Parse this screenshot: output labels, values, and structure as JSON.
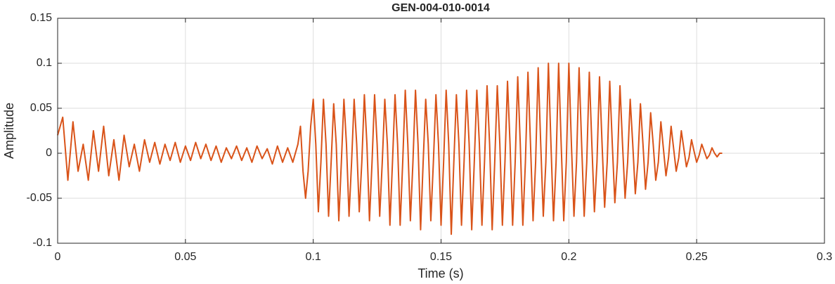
{
  "chart_data": {
    "type": "line",
    "title": "GEN-004-010-0014",
    "x_label": "Time (s)",
    "y_label": "Amplitude",
    "color": "#d95319",
    "grid": true,
    "xlim": [
      0,
      0.3
    ],
    "xticks": [
      0,
      0.05,
      0.1,
      0.15,
      0.2,
      0.25,
      0.3
    ],
    "ylim": [
      -0.1,
      0.15
    ],
    "yticks": [
      -0.1,
      -0.05,
      0,
      0.05,
      0.1,
      0.15
    ],
    "x": [
      0,
      0.002,
      0.004,
      0.006,
      0.008,
      0.01,
      0.012,
      0.014,
      0.016,
      0.018,
      0.02,
      0.022,
      0.024,
      0.026,
      0.028,
      0.03,
      0.032,
      0.034,
      0.036,
      0.038,
      0.04,
      0.042,
      0.044,
      0.046,
      0.048,
      0.05,
      0.052,
      0.054,
      0.056,
      0.058,
      0.06,
      0.062,
      0.064,
      0.066,
      0.068,
      0.07,
      0.072,
      0.074,
      0.076,
      0.078,
      0.08,
      0.082,
      0.084,
      0.086,
      0.088,
      0.09,
      0.092,
      0.094,
      0.095,
      0.096,
      0.097,
      0.098,
      0.099,
      0.1,
      0.101,
      0.102,
      0.103,
      0.104,
      0.105,
      0.106,
      0.107,
      0.108,
      0.109,
      0.11,
      0.111,
      0.112,
      0.113,
      0.114,
      0.115,
      0.116,
      0.117,
      0.118,
      0.119,
      0.12,
      0.121,
      0.122,
      0.123,
      0.124,
      0.125,
      0.126,
      0.127,
      0.128,
      0.129,
      0.13,
      0.131,
      0.132,
      0.133,
      0.134,
      0.135,
      0.136,
      0.137,
      0.138,
      0.139,
      0.14,
      0.141,
      0.142,
      0.143,
      0.144,
      0.145,
      0.146,
      0.147,
      0.148,
      0.149,
      0.15,
      0.151,
      0.152,
      0.153,
      0.154,
      0.155,
      0.156,
      0.157,
      0.158,
      0.159,
      0.16,
      0.161,
      0.162,
      0.163,
      0.164,
      0.165,
      0.166,
      0.167,
      0.168,
      0.169,
      0.17,
      0.171,
      0.172,
      0.173,
      0.174,
      0.175,
      0.176,
      0.177,
      0.178,
      0.179,
      0.18,
      0.181,
      0.182,
      0.183,
      0.184,
      0.185,
      0.186,
      0.187,
      0.188,
      0.189,
      0.19,
      0.191,
      0.192,
      0.193,
      0.194,
      0.195,
      0.196,
      0.197,
      0.198,
      0.199,
      0.2,
      0.201,
      0.202,
      0.203,
      0.204,
      0.205,
      0.206,
      0.207,
      0.208,
      0.209,
      0.21,
      0.211,
      0.212,
      0.213,
      0.214,
      0.215,
      0.216,
      0.217,
      0.218,
      0.219,
      0.22,
      0.221,
      0.222,
      0.223,
      0.224,
      0.225,
      0.226,
      0.227,
      0.228,
      0.229,
      0.23,
      0.231,
      0.232,
      0.233,
      0.234,
      0.235,
      0.236,
      0.237,
      0.238,
      0.239,
      0.24,
      0.241,
      0.242,
      0.243,
      0.244,
      0.245,
      0.246,
      0.247,
      0.248,
      0.249,
      0.25,
      0.251,
      0.252,
      0.253,
      0.254,
      0.255,
      0.256,
      0.257,
      0.258,
      0.259,
      0.26
    ],
    "values": [
      0.02,
      0.04,
      -0.03,
      0.035,
      -0.02,
      0.01,
      -0.03,
      0.025,
      -0.02,
      0.03,
      -0.025,
      0.015,
      -0.03,
      0.02,
      -0.015,
      0.01,
      -0.02,
      0.015,
      -0.01,
      0.012,
      -0.012,
      0.01,
      -0.008,
      0.012,
      -0.01,
      0.008,
      -0.008,
      0.012,
      -0.006,
      0.01,
      -0.008,
      0.008,
      -0.01,
      0.006,
      -0.006,
      0.008,
      -0.008,
      0.006,
      -0.01,
      0.008,
      -0.006,
      0.005,
      -0.012,
      0.008,
      -0.01,
      0.006,
      -0.01,
      0.01,
      0.03,
      -0.02,
      -0.05,
      -0.02,
      0.03,
      0.06,
      0.01,
      -0.065,
      -0.01,
      0.06,
      0.01,
      -0.07,
      -0.01,
      0.055,
      0.01,
      -0.075,
      -0.01,
      0.06,
      0.01,
      -0.07,
      -0.01,
      0.06,
      0.01,
      -0.065,
      -0.01,
      0.065,
      0.01,
      -0.075,
      -0.01,
      0.065,
      0.01,
      -0.07,
      -0.01,
      0.06,
      0.01,
      -0.08,
      -0.01,
      0.065,
      0.01,
      -0.08,
      -0.01,
      0.07,
      0.01,
      -0.075,
      -0.01,
      0.07,
      0.01,
      -0.085,
      -0.01,
      0.06,
      0.01,
      -0.075,
      -0.01,
      0.065,
      0.01,
      -0.08,
      -0.01,
      0.07,
      0.01,
      -0.09,
      -0.01,
      0.065,
      0.01,
      -0.08,
      -0.01,
      0.07,
      0.01,
      -0.085,
      -0.01,
      0.07,
      0.01,
      -0.08,
      -0.01,
      0.075,
      0.01,
      -0.085,
      -0.01,
      0.075,
      0.01,
      -0.08,
      -0.01,
      0.08,
      0.01,
      -0.08,
      -0.01,
      0.085,
      0.01,
      -0.08,
      -0.01,
      0.09,
      0.01,
      -0.075,
      -0.01,
      0.095,
      0.01,
      -0.07,
      -0.01,
      0.1,
      0.01,
      -0.075,
      -0.01,
      0.1,
      0.01,
      -0.075,
      -0.01,
      0.1,
      0.01,
      -0.07,
      -0.01,
      0.095,
      0.01,
      -0.07,
      -0.01,
      0.09,
      0.01,
      -0.065,
      -0.01,
      0.085,
      0.01,
      -0.06,
      -0.01,
      0.08,
      0.01,
      -0.055,
      -0.01,
      0.075,
      0.01,
      -0.05,
      -0.01,
      0.06,
      0.01,
      -0.045,
      -0.01,
      0.055,
      0.01,
      -0.04,
      -0.01,
      0.045,
      0.01,
      -0.03,
      -0.01,
      0.035,
      0.005,
      -0.025,
      -0.005,
      0.03,
      0.005,
      -0.02,
      -0.005,
      0.025,
      0.005,
      -0.015,
      -0.005,
      0.015,
      0.002,
      -0.01,
      -0.002,
      0.01,
      0.002,
      -0.006,
      -0.002,
      0.006,
      0,
      -0.004,
      0,
      0
    ]
  }
}
